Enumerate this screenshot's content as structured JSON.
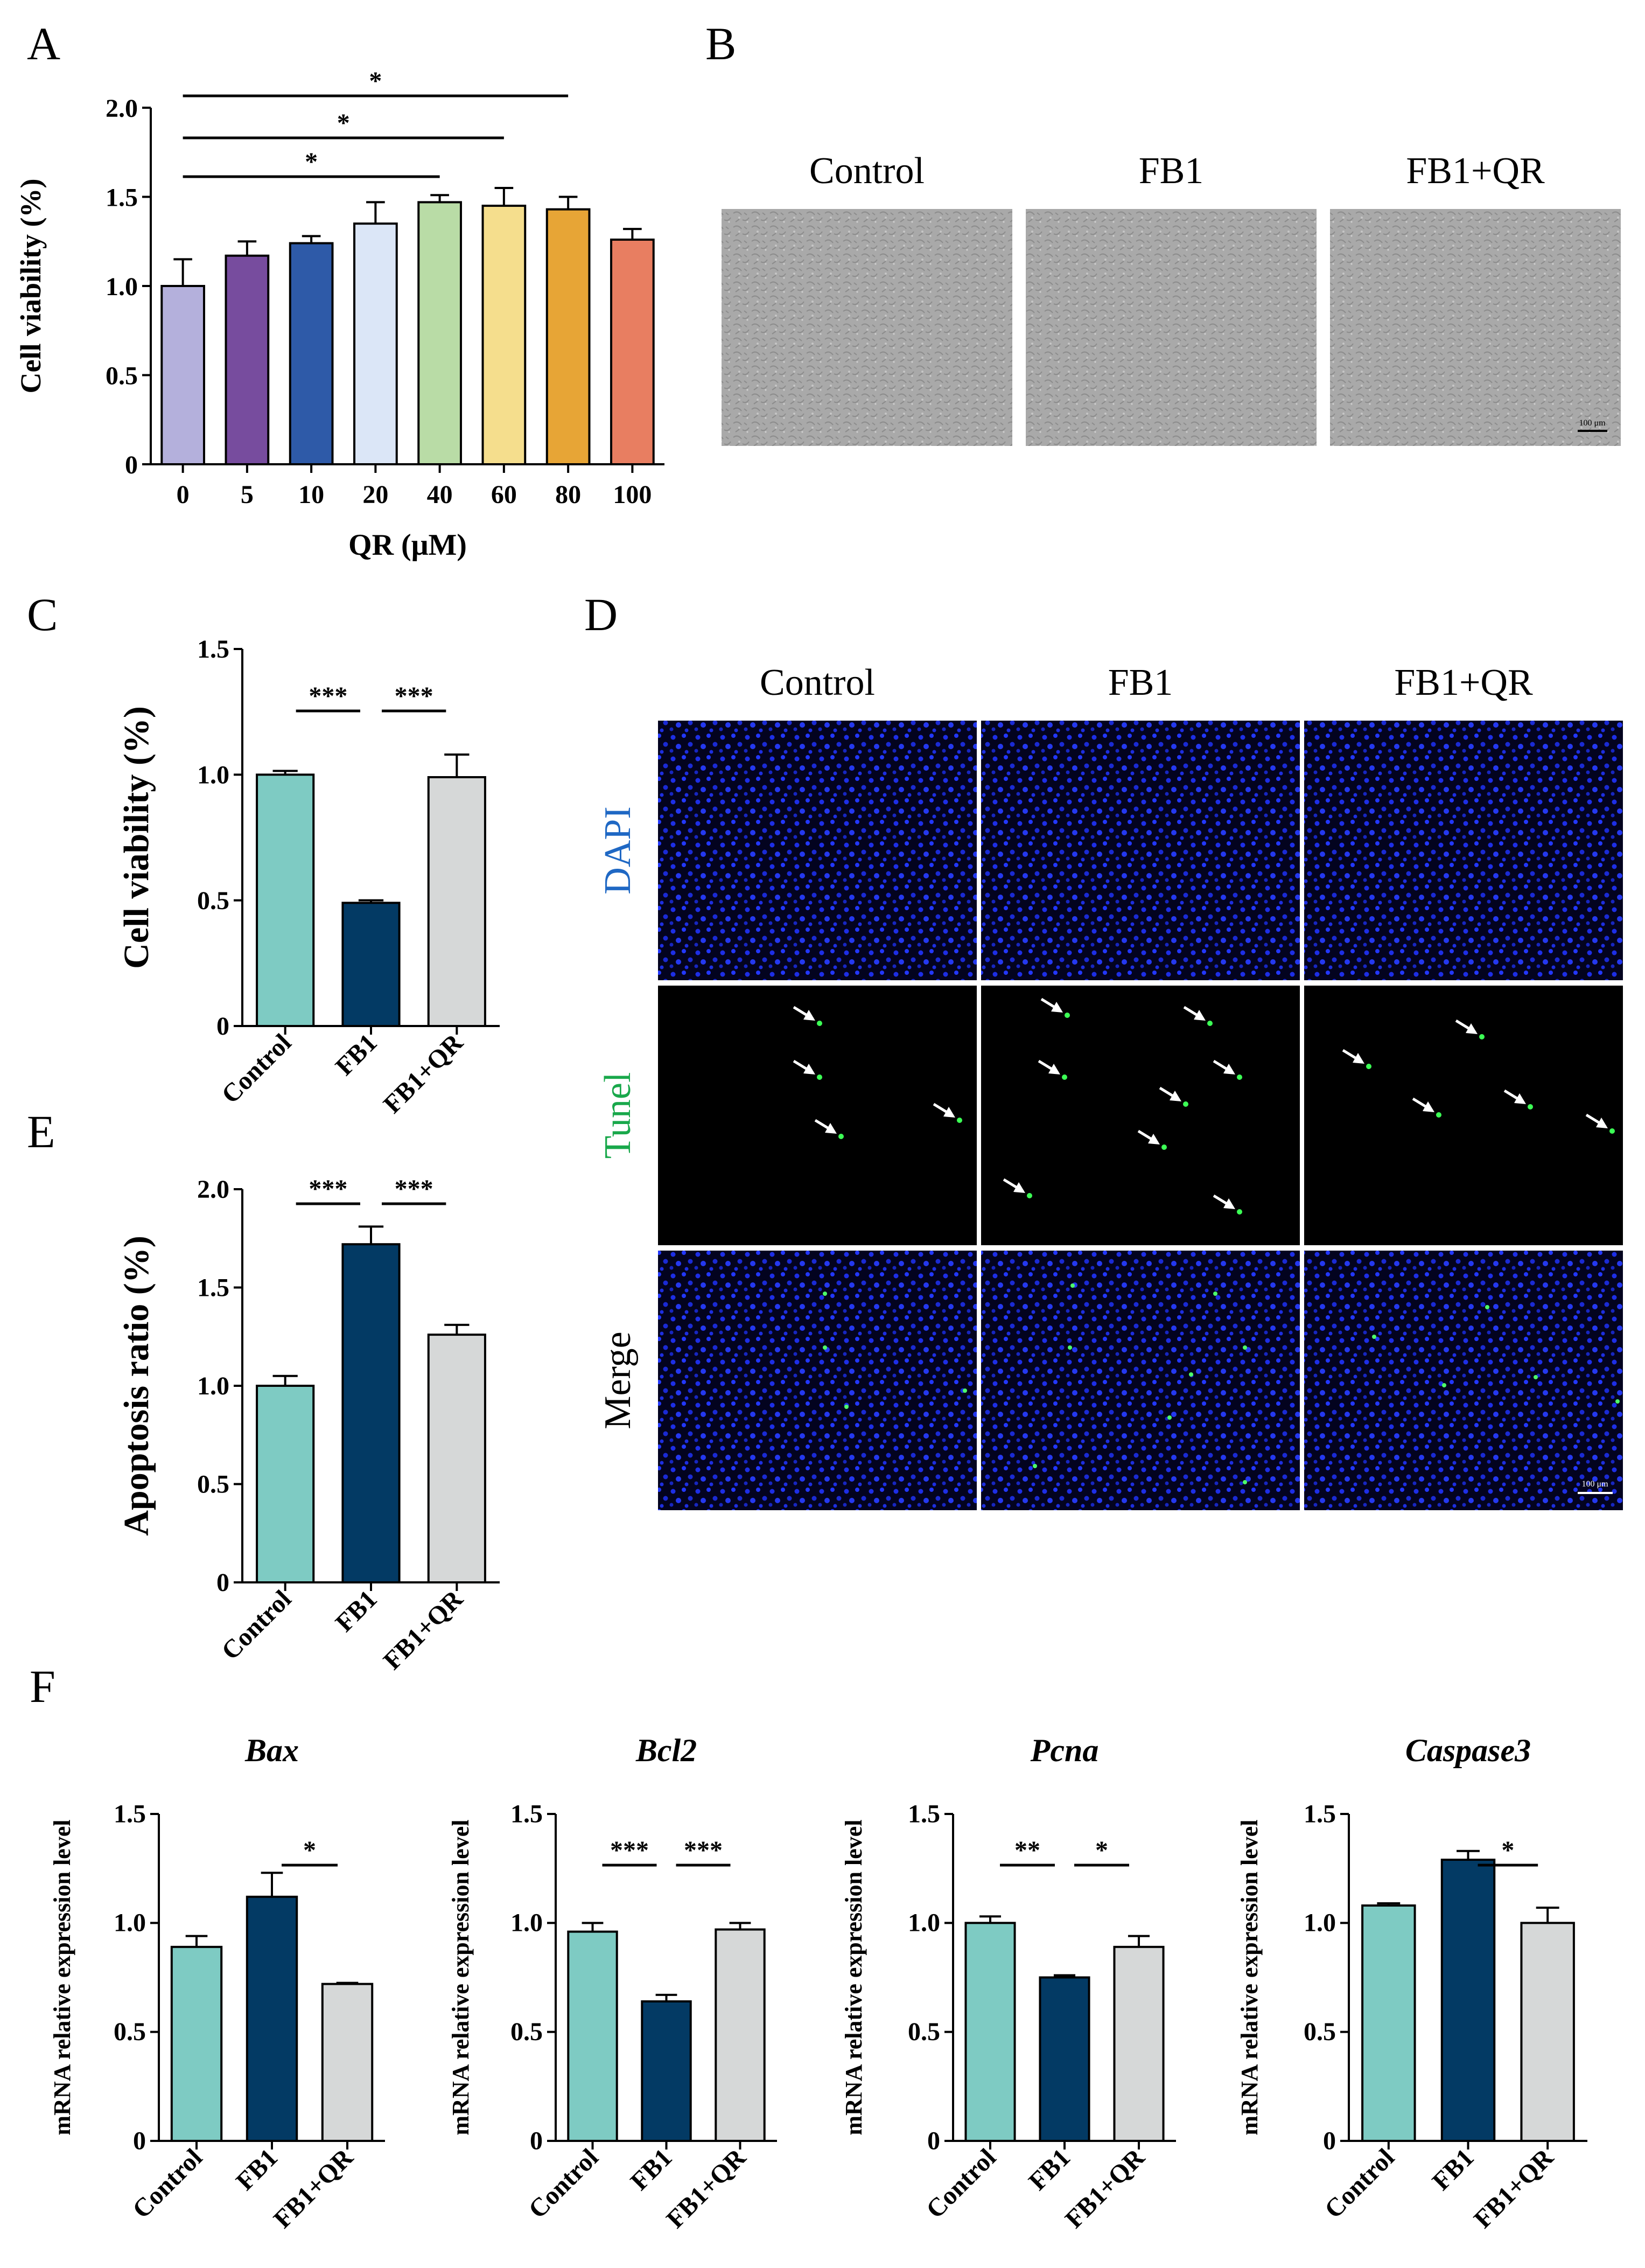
{
  "colors": {
    "control": "#7ecbc3",
    "fb1": "#033a64",
    "fb1qr": "#d6d8d8",
    "dose_bars": [
      "#b4b0dc",
      "#774c9e",
      "#2e5aa8",
      "#dbe6f7",
      "#b9dca6",
      "#f5de8d",
      "#e7a536",
      "#e87e61"
    ],
    "dapi_label": "#1f68c4",
    "tunel_label": "#19a84b",
    "merge_label": "#000000"
  },
  "panels": {
    "A": {
      "letter": "A"
    },
    "B": {
      "letter": "B",
      "columns": [
        "Control",
        "FB1",
        "FB1+QR"
      ],
      "scale_bar": "100 μm"
    },
    "C": {
      "letter": "C"
    },
    "D": {
      "letter": "D",
      "columns": [
        "Control",
        "FB1",
        "FB1+QR"
      ],
      "rows": [
        "DAPI",
        "Tunel",
        "Merge"
      ],
      "scale_bar": "100 μm"
    },
    "E": {
      "letter": "E"
    },
    "F": {
      "letter": "F"
    }
  },
  "chart_data": [
    {
      "id": "A",
      "type": "bar",
      "categories": [
        "0",
        "5",
        "10",
        "20",
        "40",
        "60",
        "80",
        "100"
      ],
      "values": [
        1.0,
        1.17,
        1.24,
        1.35,
        1.47,
        1.45,
        1.43,
        1.26
      ],
      "errors": [
        0.15,
        0.08,
        0.04,
        0.12,
        0.04,
        0.1,
        0.07,
        0.06
      ],
      "xlabel": "QR (μM)",
      "ylabel": "Cell viability (%)",
      "ylim": [
        0,
        2.0
      ],
      "yticks": [
        "0",
        "0.5",
        "1.0",
        "1.5",
        "2.0"
      ],
      "significance": [
        {
          "from": 0,
          "to": 4,
          "label": "*"
        },
        {
          "from": 0,
          "to": 5,
          "label": "*"
        },
        {
          "from": 0,
          "to": 6,
          "label": "*"
        }
      ]
    },
    {
      "id": "C",
      "type": "bar",
      "categories": [
        "Control",
        "FB1",
        "FB1+QR"
      ],
      "values": [
        1.0,
        0.49,
        0.99
      ],
      "errors": [
        0.015,
        0.01,
        0.09
      ],
      "ylabel": "Cell viability (%)",
      "ylim": [
        0,
        1.5
      ],
      "yticks": [
        "0",
        "0.5",
        "1.0",
        "1.5"
      ],
      "significance": [
        {
          "from": 0,
          "to": 1,
          "label": "***"
        },
        {
          "from": 1,
          "to": 2,
          "label": "***"
        }
      ]
    },
    {
      "id": "E",
      "type": "bar",
      "categories": [
        "Control",
        "FB1",
        "FB1+QR"
      ],
      "values": [
        1.0,
        1.72,
        1.26
      ],
      "errors": [
        0.05,
        0.09,
        0.05
      ],
      "ylabel": "Apoptosis ratio (%)",
      "ylim": [
        0,
        2.0
      ],
      "yticks": [
        "0",
        "0.5",
        "1.0",
        "1.5",
        "2.0"
      ],
      "significance": [
        {
          "from": 0,
          "to": 1,
          "label": "***"
        },
        {
          "from": 1,
          "to": 2,
          "label": "***"
        }
      ]
    },
    {
      "id": "F1",
      "type": "bar",
      "title": "Bax",
      "categories": [
        "Control",
        "FB1",
        "FB1+QR"
      ],
      "values": [
        0.89,
        1.12,
        0.72
      ],
      "errors": [
        0.05,
        0.11,
        0.005
      ],
      "ylabel": "mRNA relative expression level",
      "ylim": [
        0,
        1.5
      ],
      "yticks": [
        "0",
        "0.5",
        "1.0",
        "1.5"
      ],
      "significance": [
        {
          "from": 1,
          "to": 2,
          "label": "*"
        }
      ]
    },
    {
      "id": "F2",
      "type": "bar",
      "title": "Bcl2",
      "categories": [
        "Control",
        "FB1",
        "FB1+QR"
      ],
      "values": [
        0.96,
        0.64,
        0.97
      ],
      "errors": [
        0.04,
        0.03,
        0.03
      ],
      "ylabel": "mRNA relative expression level",
      "ylim": [
        0,
        1.5
      ],
      "yticks": [
        "0",
        "0.5",
        "1.0",
        "1.5"
      ],
      "significance": [
        {
          "from": 0,
          "to": 1,
          "label": "***"
        },
        {
          "from": 1,
          "to": 2,
          "label": "***"
        }
      ]
    },
    {
      "id": "F3",
      "type": "bar",
      "title": "Pcna",
      "categories": [
        "Control",
        "FB1",
        "FB1+QR"
      ],
      "values": [
        1.0,
        0.75,
        0.89
      ],
      "errors": [
        0.03,
        0.01,
        0.05
      ],
      "ylabel": "mRNA relative expression level",
      "ylim": [
        0,
        1.5
      ],
      "yticks": [
        "0",
        "0.5",
        "1.0",
        "1.5"
      ],
      "significance": [
        {
          "from": 0,
          "to": 1,
          "label": "**"
        },
        {
          "from": 1,
          "to": 2,
          "label": "*"
        }
      ]
    },
    {
      "id": "F4",
      "type": "bar",
      "title": "Caspase3",
      "categories": [
        "Control",
        "FB1",
        "FB1+QR"
      ],
      "values": [
        1.08,
        1.29,
        1.0
      ],
      "errors": [
        0.01,
        0.04,
        0.07
      ],
      "ylabel": "mRNA relative expression level",
      "ylim": [
        0,
        1.5
      ],
      "yticks": [
        "0",
        "0.5",
        "1.0",
        "1.5"
      ],
      "significance": [
        {
          "from": 1,
          "to": 2,
          "label": "*"
        }
      ]
    }
  ]
}
